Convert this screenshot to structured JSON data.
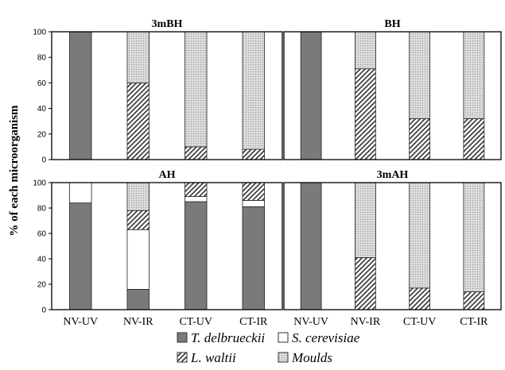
{
  "chart_data": {
    "type": "bar",
    "stacked": true,
    "ylabel": "% of each microorganism",
    "ylim": [
      0,
      100
    ],
    "yticks": [
      0,
      20,
      40,
      60,
      80,
      100
    ],
    "categories": [
      "NV-UV",
      "NV-IR",
      "CT-UV",
      "CT-IR"
    ],
    "legend": [
      {
        "name": "T. delbrueckii",
        "color": "#7a7a7a",
        "pattern": "solid"
      },
      {
        "name": "S. cerevisiae",
        "color": "#ffffff",
        "pattern": "solid"
      },
      {
        "name": "L. waltii",
        "color": "#ffffff",
        "pattern": "hatch"
      },
      {
        "name": "Moulds",
        "color": "#d8d8d8",
        "pattern": "dots"
      }
    ],
    "panels": [
      {
        "title": "3mBH",
        "series": [
          {
            "name": "T. delbrueckii",
            "values": [
              100,
              0,
              0,
              0
            ]
          },
          {
            "name": "S. cerevisiae",
            "values": [
              0,
              0,
              0,
              0
            ]
          },
          {
            "name": "L. waltii",
            "values": [
              0,
              60,
              10,
              8
            ]
          },
          {
            "name": "Moulds",
            "values": [
              0,
              40,
              90,
              92
            ]
          }
        ]
      },
      {
        "title": "BH",
        "series": [
          {
            "name": "T. delbrueckii",
            "values": [
              100,
              0,
              0,
              0
            ]
          },
          {
            "name": "S. cerevisiae",
            "values": [
              0,
              0,
              0,
              0
            ]
          },
          {
            "name": "L. waltii",
            "values": [
              0,
              71,
              32,
              32
            ]
          },
          {
            "name": "Moulds",
            "values": [
              0,
              29,
              68,
              68
            ]
          }
        ]
      },
      {
        "title": "AH",
        "series": [
          {
            "name": "T. delbrueckii",
            "values": [
              84,
              16,
              85,
              81
            ]
          },
          {
            "name": "S. cerevisiae",
            "values": [
              16,
              47,
              4,
              5
            ]
          },
          {
            "name": "L. waltii",
            "values": [
              0,
              15,
              11,
              14
            ]
          },
          {
            "name": "Moulds",
            "values": [
              0,
              22,
              0,
              0
            ]
          }
        ]
      },
      {
        "title": "3mAH",
        "series": [
          {
            "name": "T. delbrueckii",
            "values": [
              100,
              0,
              0,
              0
            ]
          },
          {
            "name": "S. cerevisiae",
            "values": [
              0,
              0,
              0,
              0
            ]
          },
          {
            "name": "L. waltii",
            "values": [
              0,
              41,
              17,
              14
            ]
          },
          {
            "name": "Moulds",
            "values": [
              0,
              59,
              83,
              86
            ]
          }
        ]
      }
    ]
  }
}
